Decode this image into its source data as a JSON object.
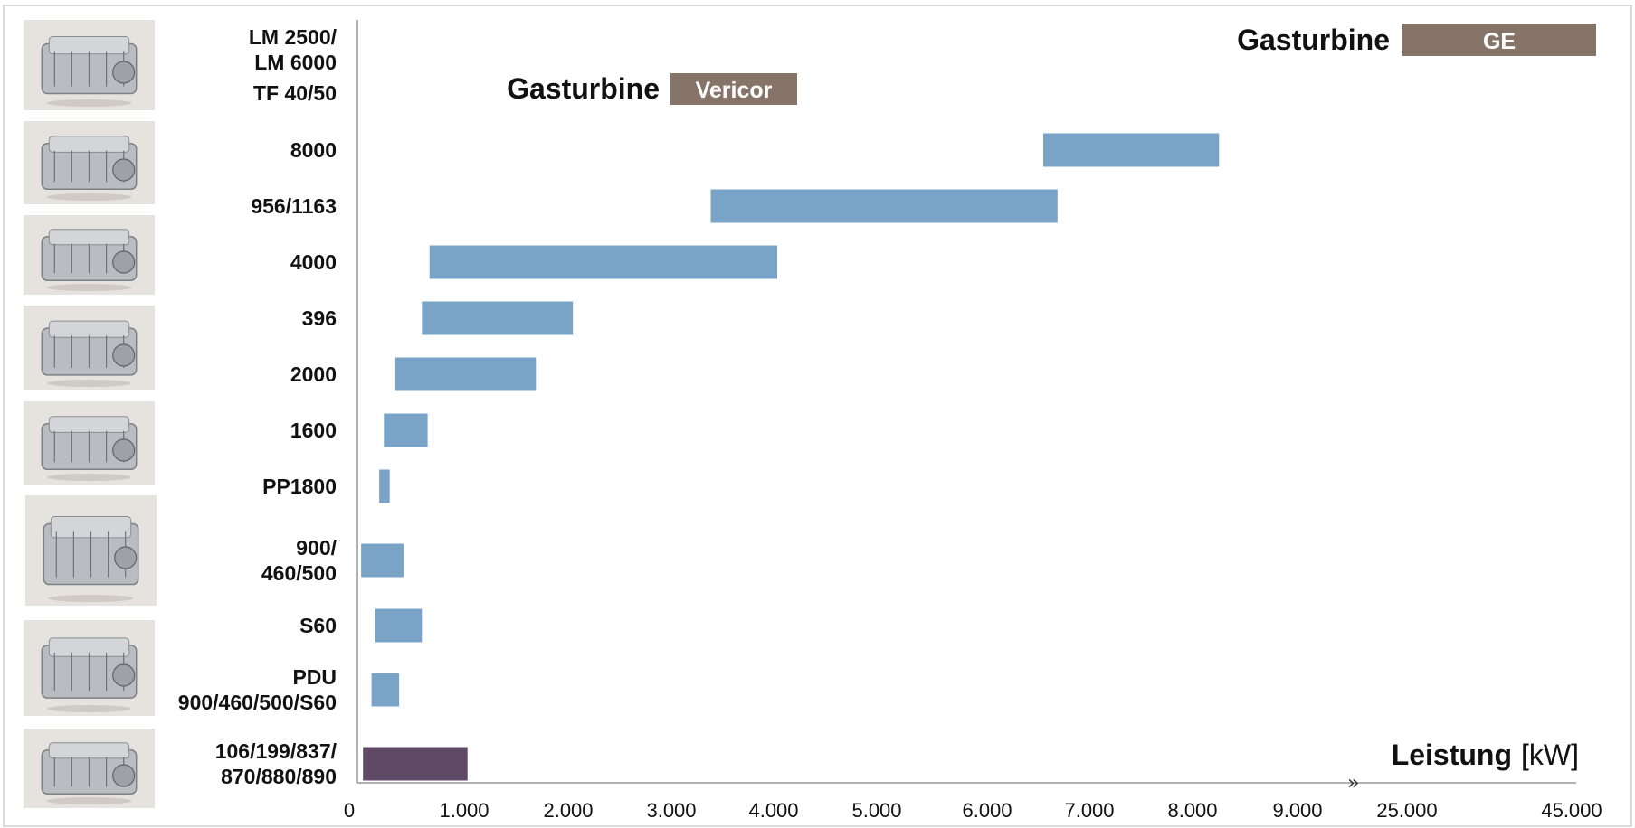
{
  "chart_data": {
    "type": "bar",
    "orientation": "horizontal-range",
    "categories": [
      [
        "LM 2500/",
        "LM 6000"
      ],
      [
        "TF 40/50"
      ],
      [
        "8000"
      ],
      [
        "956/1163"
      ],
      [
        "4000"
      ],
      [
        "396"
      ],
      [
        "2000"
      ],
      [
        "1600"
      ],
      [
        "PP1800"
      ],
      [
        "900/",
        "460/500"
      ],
      [
        "S60"
      ],
      [
        "PDU",
        "900/460/500/S60"
      ],
      [
        "106/199/837/",
        "870/880/890"
      ]
    ],
    "ranges": [
      null,
      null,
      [
        7200,
        9050
      ],
      [
        3700,
        7350
      ],
      [
        740,
        4400
      ],
      [
        660,
        2250
      ],
      [
        380,
        1860
      ],
      [
        260,
        720
      ],
      [
        210,
        320
      ],
      [
        20,
        470
      ],
      [
        170,
        660
      ],
      [
        130,
        420
      ],
      [
        40,
        1140
      ]
    ],
    "bar_colors": [
      "",
      "",
      "#79a4c8",
      "#79a4c8",
      "#79a4c8",
      "#79a4c8",
      "#79a4c8",
      "#79a4c8",
      "#79a4c8",
      "#79a4c8",
      "#79a4c8",
      "#79a4c8",
      "#5e4a64"
    ],
    "x_ticks": [
      "0",
      "1.000",
      "2.000",
      "3.000",
      "4.000",
      "5.000",
      "6.000",
      "7.000",
      "8.000",
      "9.000",
      "25.000",
      "45.000"
    ],
    "xlim": [
      0,
      9500
    ],
    "axis_break": "»",
    "xlabel": {
      "bold": "Leistung",
      "unit": "[kW]"
    },
    "annotations": [
      {
        "text": "Gasturbine",
        "box": "GE",
        "box_color": "#867469",
        "row": 0
      },
      {
        "text": "Gasturbine",
        "box": "Vericor",
        "box_color": "#867469",
        "row": 1
      }
    ],
    "grid": false,
    "legend": "none"
  },
  "images": [
    "gas-turbine-image",
    "series-8000-engine-image",
    "series-4000-engine-image",
    "series-2000-engine-image",
    "series-1600-engine-image",
    "series-900-engine-image",
    "series-60-engine-image",
    "small-engine-image"
  ],
  "colors": {
    "bar": "#79a4c8",
    "bar_small_engine": "#5e4a64",
    "annotation_box": "#867469",
    "thumbnail_bg": "#e6e2dd"
  }
}
